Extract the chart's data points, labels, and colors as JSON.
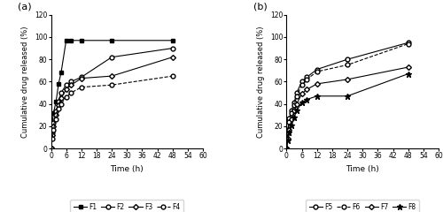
{
  "time_points": [
    0,
    0.5,
    1,
    2,
    3,
    4,
    6,
    8,
    12,
    24,
    48
  ],
  "F1": [
    0,
    22,
    32,
    42,
    58,
    68,
    97,
    97,
    97,
    97,
    97
  ],
  "F2": [
    0,
    14,
    23,
    33,
    42,
    50,
    57,
    60,
    64,
    82,
    90
  ],
  "F3": [
    0,
    12,
    20,
    30,
    39,
    45,
    53,
    57,
    63,
    65,
    82
  ],
  "F4": [
    0,
    9,
    17,
    26,
    36,
    40,
    46,
    50,
    55,
    57,
    65
  ],
  "F5": [
    0,
    17,
    27,
    34,
    41,
    50,
    60,
    64,
    71,
    80,
    95
  ],
  "F6": [
    0,
    14,
    24,
    32,
    39,
    47,
    57,
    62,
    69,
    75,
    94
  ],
  "F7": [
    0,
    9,
    17,
    26,
    34,
    40,
    49,
    53,
    58,
    62,
    73
  ],
  "F8": [
    0,
    7,
    14,
    21,
    28,
    34,
    41,
    44,
    47,
    47,
    67
  ],
  "xlabel": "Time (h)",
  "ylabel": "Cumulative drug released (%)",
  "xlim": [
    0,
    60
  ],
  "ylim": [
    0,
    120
  ],
  "xticks": [
    0,
    6,
    12,
    18,
    24,
    30,
    36,
    42,
    48,
    54,
    60
  ],
  "yticks": [
    0,
    20,
    40,
    60,
    80,
    100,
    120
  ],
  "label_a": "(a)",
  "label_b": "(b)"
}
